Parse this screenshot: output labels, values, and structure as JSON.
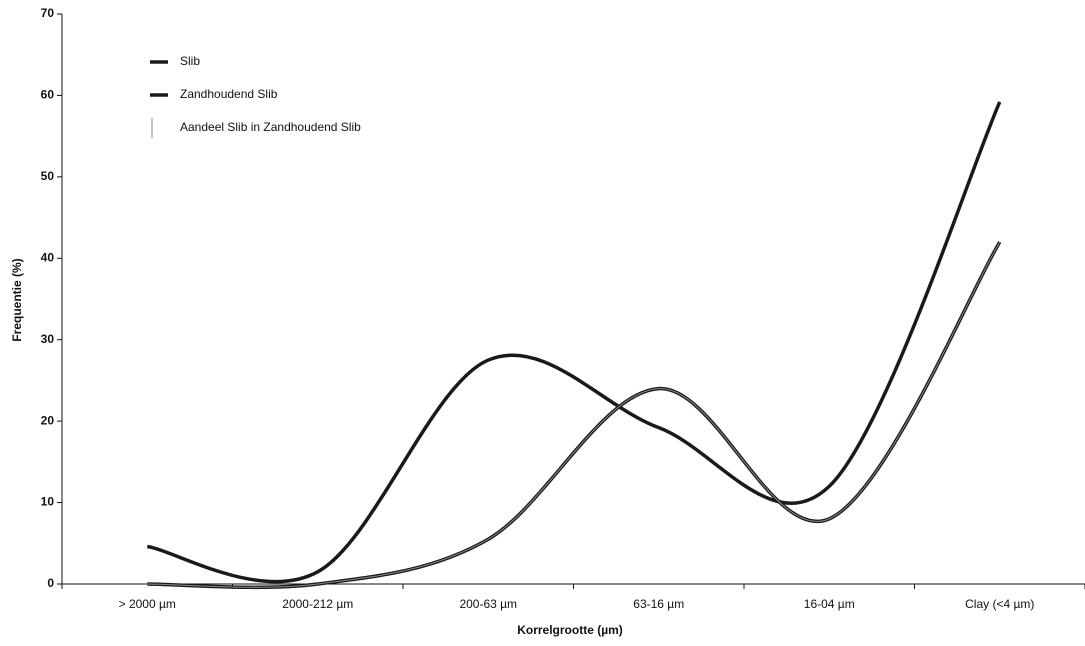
{
  "chart_data": {
    "type": "line",
    "x_label": "Korrelgrootte (µm)",
    "y_label": "Frequentie (%)",
    "categories": [
      "> 2000 µm",
      "2000-212 µm",
      "200-63 µm",
      "63-16 µm",
      "16-04 µm",
      "Clay (<4 µm)"
    ],
    "series": [
      {
        "name": "Slib",
        "color": "#1a1a1a",
        "width": 3.5,
        "values": [
          0,
          0,
          5.5,
          24,
          8,
          42
        ]
      },
      {
        "name": "Zandhoudend Slib",
        "color": "#1a1a1a",
        "width": 3.5,
        "values": [
          4.6,
          1.5,
          27.5,
          19.2,
          12,
          59.2
        ]
      },
      {
        "name": "Aandeel Slib in Zandhoudend Slib",
        "color": "#888888",
        "width": 1,
        "values": [
          0,
          0,
          5.5,
          24,
          8,
          42
        ]
      }
    ],
    "ylim": [
      0,
      70
    ],
    "yticks": [
      0,
      10,
      20,
      30,
      40,
      50,
      60,
      70
    ],
    "smooth": true
  }
}
